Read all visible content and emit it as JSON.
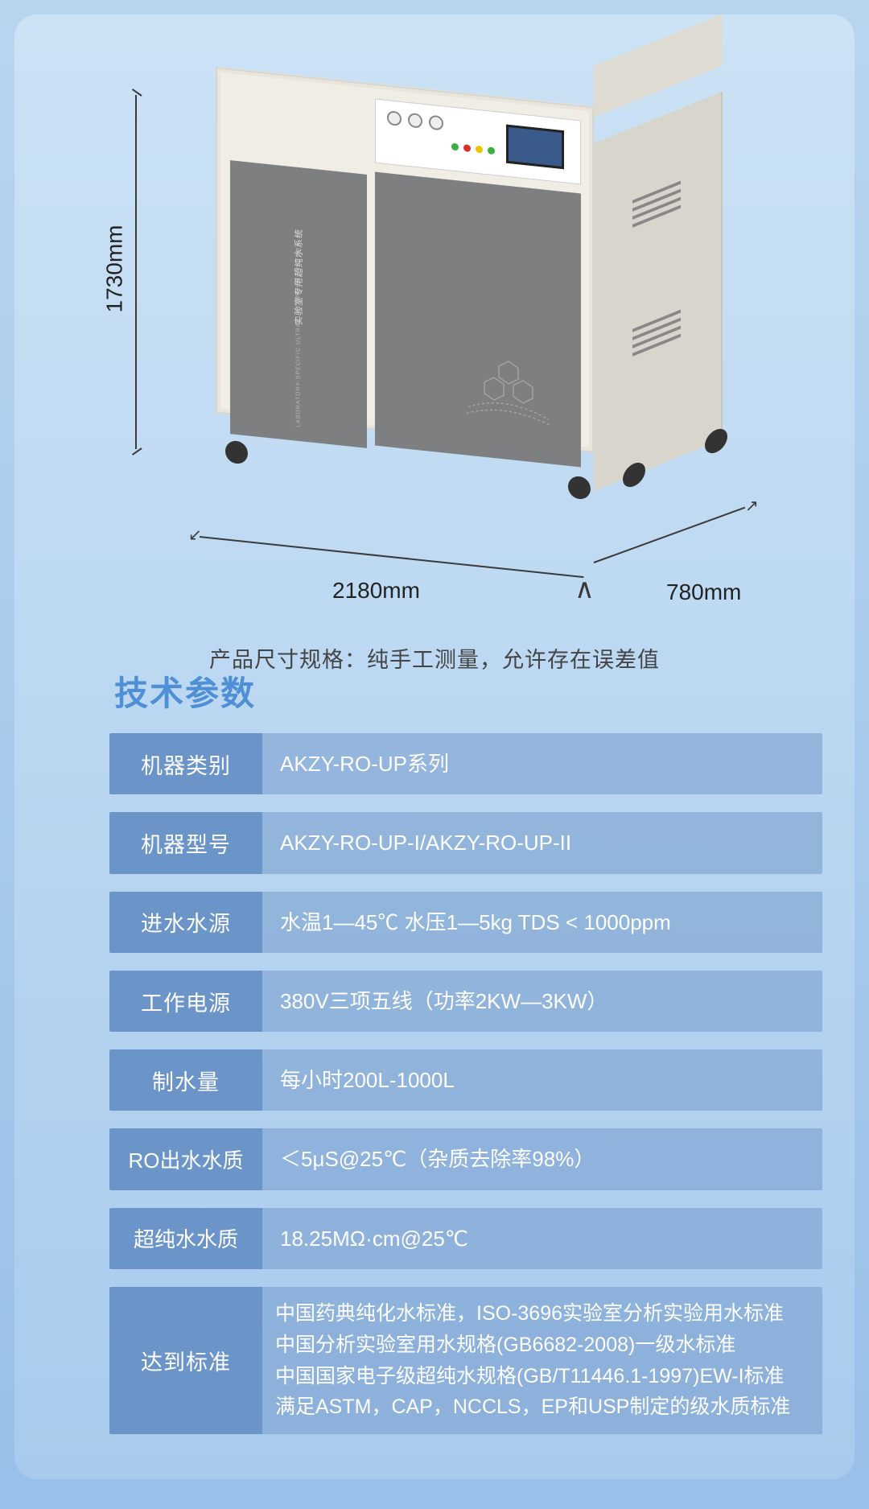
{
  "dimensions": {
    "height": "1730mm",
    "width": "2180mm",
    "depth": "780mm",
    "note": "产品尺寸规格：纯手工测量，允许存在误差值"
  },
  "machine_panel": {
    "door_title": "实验室专用超纯水系统",
    "door_subtitle": "LABORATORY-SPECIFIC ULTRAPURE WATER SYSTEM"
  },
  "colors": {
    "bg_top": "#cce2f5",
    "bg_bottom": "#a8cbed",
    "spec_label_bg": "#6b94c9",
    "spec_value_bg": "rgba(116,154,204,0.55)",
    "title_color": "#4e8fd6",
    "machine_body": "#f0ede4",
    "machine_door": "#7d7f80",
    "btn_green": "#3cb043",
    "btn_red": "#d9302c",
    "btn_yellow": "#e8c500"
  },
  "specs_title": "技术参数",
  "specs": [
    {
      "label": "机器类别",
      "value": "AKZY-RO-UP系列"
    },
    {
      "label": "机器型号",
      "value": "AKZY-RO-UP-I/AKZY-RO-UP-II"
    },
    {
      "label": "进水水源",
      "value": "水温1—45℃  水压1—5kg   TDS < 1000ppm"
    },
    {
      "label": "工作电源",
      "value": "380V三项五线（功率2KW—3KW）"
    },
    {
      "label": "制水量",
      "value": "每小时200L-1000L"
    },
    {
      "label": "RO出水水质",
      "value": "＜5μS@25℃（杂质去除率98%）",
      "narrow": true
    },
    {
      "label": "超纯水水质",
      "value": "18.25MΩ·cm@25℃",
      "narrow": true
    },
    {
      "label": "达到标准",
      "value": "中国药典纯化水标准，ISO-3696实验室分析实验用水标准\n中国分析实验室用水规格(GB6682-2008)一级水标准\n中国国家电子级超纯水规格(GB/T11446.1-1997)EW-I标准\n满足ASTM，CAP，NCCLS，EP和USP制定的级水质标准",
      "multi": true
    }
  ]
}
